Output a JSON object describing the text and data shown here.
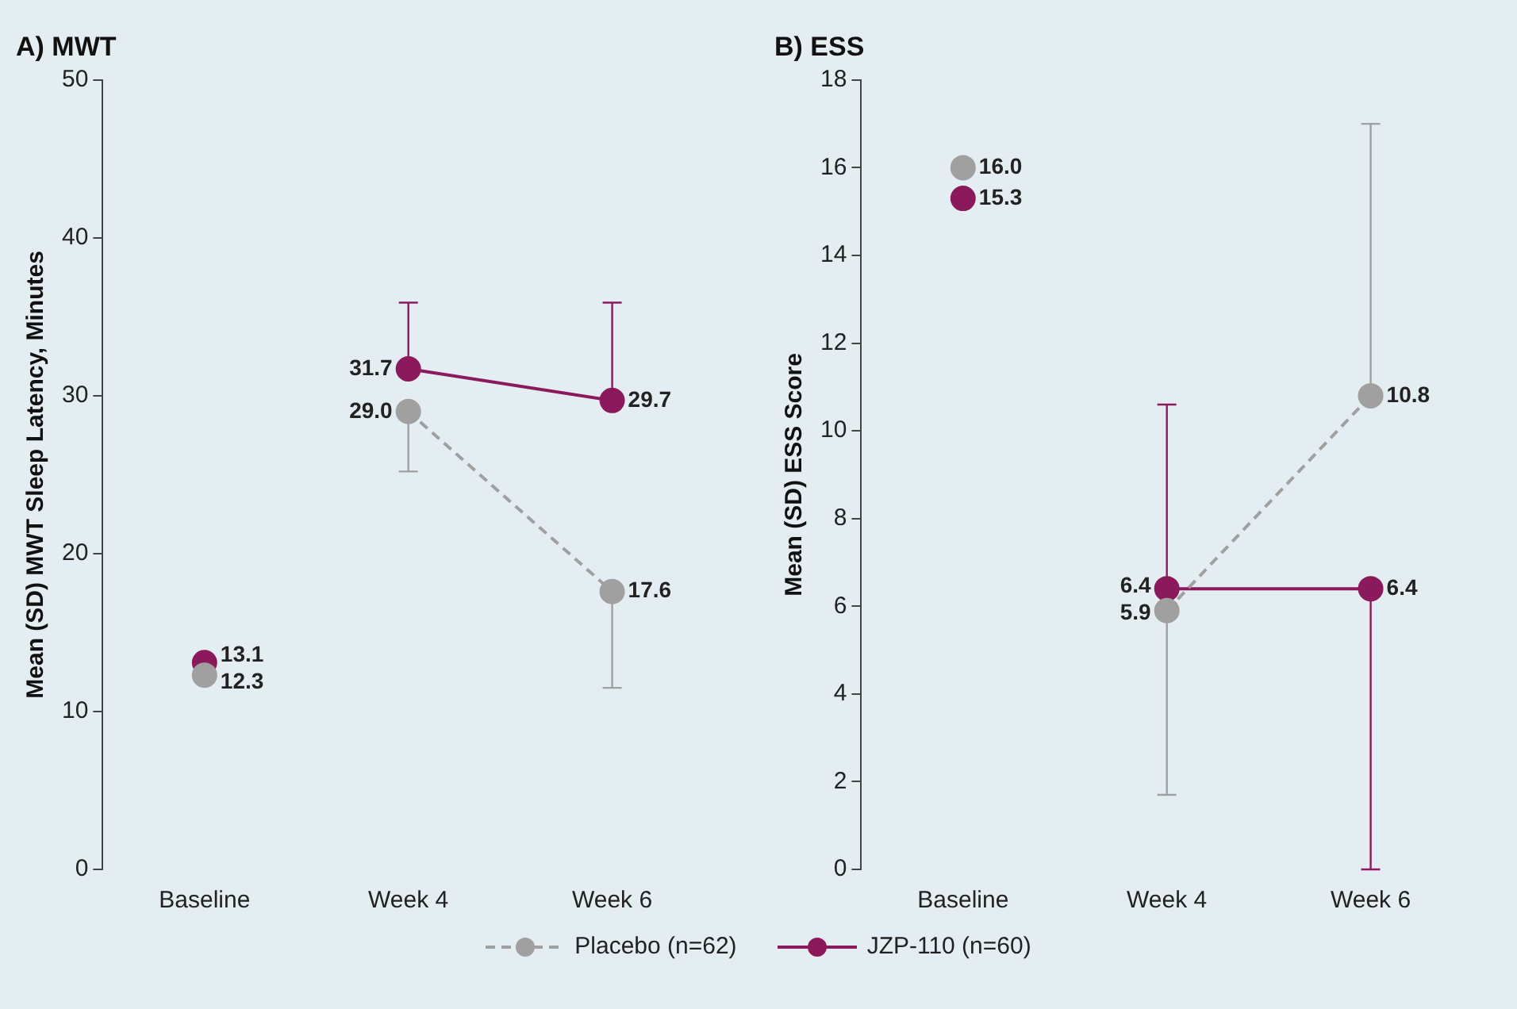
{
  "chart_data": [
    {
      "type": "line",
      "title": "A) MWT",
      "ylabel": "Mean (SD) MWT Sleep Latency, Minutes",
      "categories": [
        "Baseline",
        "Week 4",
        "Week 6"
      ],
      "ylim": [
        0,
        50
      ],
      "yticks": [
        0,
        10,
        20,
        30,
        40,
        50
      ],
      "grid": false,
      "legend": "bottom",
      "marker": "circle",
      "series": [
        {
          "type": "scatter",
          "color": "#a0a0a0",
          "x": [
            "Baseline"
          ],
          "values": [
            12.3
          ],
          "value_labels": [
            "12.3"
          ]
        },
        {
          "type": "scatter",
          "color": "#8b1a5c",
          "x": [
            "Baseline"
          ],
          "values": [
            13.1
          ],
          "value_labels": [
            "13.1"
          ]
        },
        {
          "name": "Placebo (n=62)",
          "color": "#a0a0a0",
          "line_style": "dashed",
          "values": [
            null,
            29.0,
            17.6
          ],
          "value_labels": [
            null,
            "29.0",
            "17.6"
          ],
          "errors": [
            null,
            [
              25.2,
              29.0
            ],
            [
              11.5,
              17.6
            ]
          ]
        },
        {
          "name": "JZP-110 (n=60)",
          "color": "#8b1a5c",
          "line_style": "solid",
          "values": [
            null,
            31.7,
            29.7
          ],
          "value_labels": [
            null,
            "31.7",
            "29.7"
          ],
          "errors": [
            null,
            [
              31.7,
              35.9
            ],
            [
              29.7,
              35.9
            ]
          ]
        }
      ]
    },
    {
      "type": "line",
      "title": "B) ESS",
      "ylabel": "Mean (SD) ESS Score",
      "categories": [
        "Baseline",
        "Week 4",
        "Week 6"
      ],
      "ylim": [
        0,
        18
      ],
      "yticks": [
        0,
        2,
        4,
        6,
        8,
        10,
        12,
        14,
        16,
        18
      ],
      "grid": false,
      "marker": "circle",
      "series": [
        {
          "type": "scatter",
          "color": "#a0a0a0",
          "x": [
            "Baseline"
          ],
          "values": [
            16.0
          ],
          "value_labels": [
            "16.0"
          ]
        },
        {
          "type": "scatter",
          "color": "#8b1a5c",
          "x": [
            "Baseline"
          ],
          "values": [
            15.3
          ],
          "value_labels": [
            "15.3"
          ]
        },
        {
          "color": "#a0a0a0",
          "line_style": "dashed",
          "values": [
            null,
            5.9,
            10.8
          ],
          "value_labels": [
            null,
            "5.9",
            "10.8"
          ],
          "errors": [
            null,
            [
              1.7,
              5.9
            ],
            [
              10.8,
              17.0
            ]
          ]
        },
        {
          "color": "#8b1a5c",
          "line_style": "solid",
          "values": [
            null,
            6.4,
            6.4
          ],
          "value_labels": [
            null,
            "6.4",
            "6.4"
          ],
          "errors": [
            null,
            [
              6.4,
              10.6
            ],
            [
              0,
              6.4
            ]
          ]
        }
      ]
    }
  ]
}
